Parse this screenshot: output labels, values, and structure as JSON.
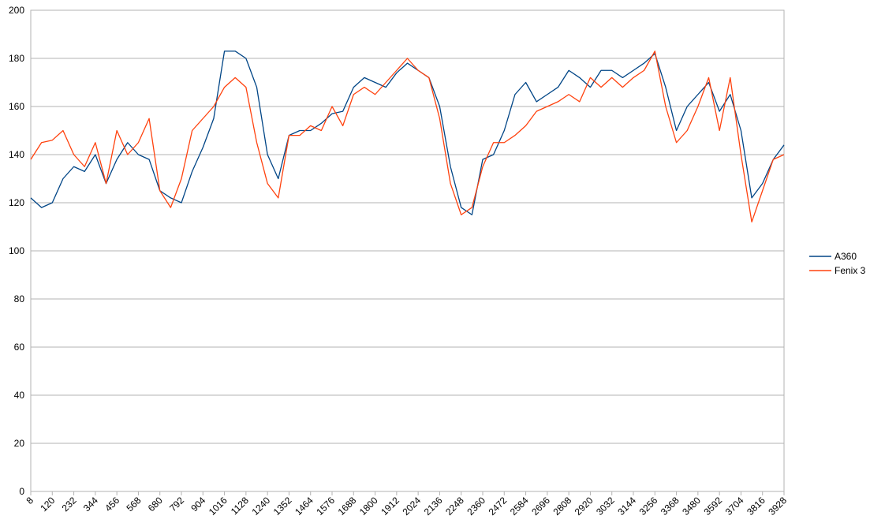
{
  "chart_data": {
    "type": "line",
    "x": [
      8,
      64,
      120,
      176,
      232,
      288,
      344,
      400,
      456,
      512,
      568,
      624,
      680,
      736,
      792,
      848,
      904,
      960,
      1016,
      1072,
      1128,
      1184,
      1240,
      1296,
      1352,
      1408,
      1464,
      1520,
      1576,
      1632,
      1688,
      1744,
      1800,
      1856,
      1912,
      1968,
      2024,
      2080,
      2136,
      2192,
      2248,
      2304,
      2360,
      2416,
      2472,
      2528,
      2584,
      2640,
      2696,
      2752,
      2808,
      2864,
      2920,
      2976,
      3032,
      3088,
      3144,
      3200,
      3256,
      3312,
      3368,
      3424,
      3480,
      3536,
      3592,
      3648,
      3704,
      3760,
      3816,
      3872,
      3928
    ],
    "series": [
      {
        "name": "A360",
        "color": "#004586",
        "values": [
          122,
          118,
          120,
          130,
          135,
          133,
          140,
          128,
          138,
          145,
          140,
          138,
          125,
          122,
          120,
          133,
          143,
          155,
          183,
          183,
          180,
          168,
          140,
          130,
          148,
          150,
          150,
          153,
          157,
          158,
          168,
          172,
          170,
          168,
          174,
          178,
          175,
          172,
          160,
          135,
          118,
          115,
          138,
          140,
          150,
          165,
          170,
          162,
          165,
          168,
          175,
          172,
          168,
          175,
          175,
          172,
          175,
          178,
          182,
          168,
          150,
          160,
          165,
          170,
          158,
          165,
          150,
          122,
          128,
          138,
          144
        ]
      },
      {
        "name": "Fenix 3",
        "color": "#ff420e",
        "values": [
          138,
          145,
          146,
          150,
          140,
          135,
          145,
          128,
          150,
          140,
          145,
          155,
          125,
          118,
          130,
          150,
          155,
          160,
          168,
          172,
          168,
          145,
          128,
          122,
          148,
          148,
          152,
          150,
          160,
          152,
          165,
          168,
          165,
          170,
          175,
          180,
          175,
          172,
          155,
          128,
          115,
          118,
          135,
          145,
          145,
          148,
          152,
          158,
          160,
          162,
          165,
          162,
          172,
          168,
          172,
          168,
          172,
          175,
          183,
          160,
          145,
          150,
          160,
          172,
          150,
          172,
          140,
          112,
          125,
          138,
          140
        ]
      }
    ],
    "xlim": [
      8,
      3928
    ],
    "xticks": [
      8,
      120,
      232,
      344,
      456,
      568,
      680,
      792,
      904,
      1016,
      1128,
      1240,
      1352,
      1464,
      1576,
      1688,
      1800,
      1912,
      2024,
      2136,
      2248,
      2360,
      2472,
      2584,
      2696,
      2808,
      2920,
      3032,
      3144,
      3256,
      3368,
      3480,
      3592,
      3704,
      3816,
      3928
    ],
    "ylim": [
      0,
      200
    ],
    "yticks": [
      0,
      20,
      40,
      60,
      80,
      100,
      120,
      140,
      160,
      180,
      200
    ],
    "grid": true,
    "legend": "right"
  }
}
